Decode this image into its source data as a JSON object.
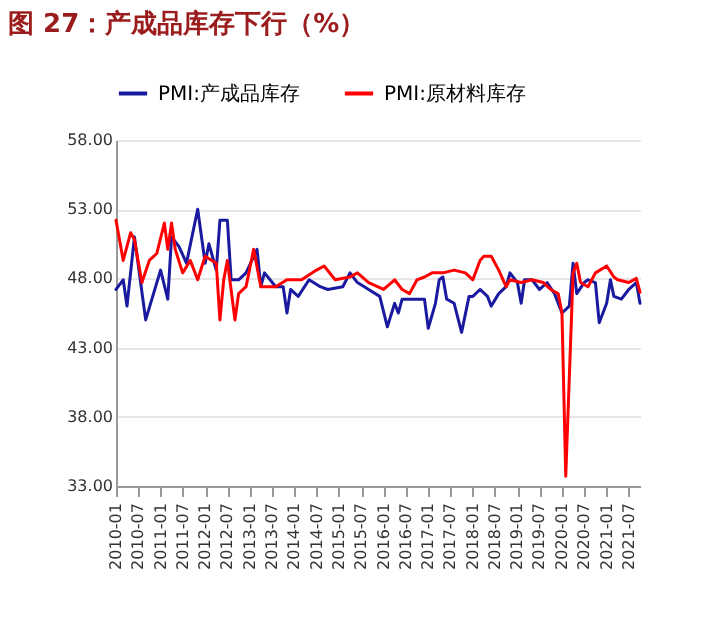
{
  "chart_data": {
    "type": "line",
    "title": "图 27：产成品库存下行（%）",
    "xlim": [
      "2010-01",
      "2021-10"
    ],
    "ylim": [
      33,
      58
    ],
    "yticks": [
      {
        "value": 33,
        "label": "33.00"
      },
      {
        "value": 38,
        "label": "38.00"
      },
      {
        "value": 43,
        "label": "43.00"
      },
      {
        "value": 48,
        "label": "48.00"
      },
      {
        "value": 53,
        "label": "53.00"
      },
      {
        "value": 58,
        "label": "58.00"
      }
    ],
    "xticks": [
      "2010-01",
      "2010-07",
      "2011-01",
      "2011-07",
      "2012-01",
      "2012-07",
      "2013-01",
      "2013-07",
      "2014-01",
      "2014-07",
      "2015-01",
      "2015-07",
      "2016-01",
      "2016-07",
      "2017-01",
      "2017-07",
      "2018-01",
      "2018-07",
      "2019-01",
      "2019-07",
      "2020-01",
      "2020-07",
      "2021-01",
      "2021-07"
    ],
    "grid": "y",
    "legend": "top",
    "series": [
      {
        "name": "PMI:产成品库存",
        "color": "#1a1aa0",
        "x": [
          "2010-01",
          "2010-03",
          "2010-04",
          "2010-06",
          "2010-09",
          "2011-01",
          "2011-03",
          "2011-04",
          "2011-06",
          "2011-08",
          "2011-11",
          "2012-01",
          "2012-02",
          "2012-04",
          "2012-05",
          "2012-07",
          "2012-08",
          "2012-10",
          "2012-12",
          "2013-03",
          "2013-04",
          "2013-05",
          "2013-08",
          "2013-10",
          "2013-11",
          "2013-12",
          "2014-02",
          "2014-05",
          "2014-08",
          "2014-10",
          "2015-02",
          "2015-04",
          "2015-06",
          "2015-09",
          "2015-12",
          "2016-02",
          "2016-04",
          "2016-05",
          "2016-06",
          "2016-10",
          "2016-12",
          "2017-01",
          "2017-03",
          "2017-04",
          "2017-05",
          "2017-06",
          "2017-08",
          "2017-10",
          "2017-12",
          "2018-01",
          "2018-03",
          "2018-05",
          "2018-06",
          "2018-08",
          "2018-10",
          "2018-11",
          "2019-01",
          "2019-02",
          "2019-03",
          "2019-05",
          "2019-07",
          "2019-09",
          "2019-11",
          "2020-01",
          "2020-03",
          "2020-04",
          "2020-05",
          "2020-07",
          "2020-08",
          "2020-10",
          "2020-11",
          "2021-01",
          "2021-02",
          "2021-03",
          "2021-05",
          "2021-07",
          "2021-09",
          "2021-10"
        ],
        "values": [
          47.2,
          47.9,
          46.0,
          51.0,
          45.0,
          48.6,
          46.5,
          51.0,
          50.3,
          49.1,
          53.0,
          49.1,
          50.5,
          48.6,
          52.2,
          52.2,
          47.9,
          47.9,
          48.4,
          50.1,
          47.4,
          48.4,
          47.4,
          47.4,
          45.5,
          47.2,
          46.7,
          47.9,
          47.4,
          47.2,
          47.4,
          48.4,
          47.7,
          47.2,
          46.7,
          44.5,
          46.2,
          45.5,
          46.5,
          46.5,
          46.5,
          44.4,
          46.2,
          47.9,
          48.1,
          46.5,
          46.2,
          44.1,
          46.7,
          46.7,
          47.2,
          46.7,
          46.0,
          46.9,
          47.4,
          48.4,
          47.7,
          46.2,
          47.9,
          47.9,
          47.2,
          47.7,
          46.9,
          45.5,
          46.0,
          49.1,
          46.9,
          47.7,
          47.9,
          47.7,
          44.8,
          46.2,
          47.9,
          46.7,
          46.5,
          47.2,
          47.7,
          46.2
        ]
      },
      {
        "name": "PMI:原材料库存",
        "color": "#ff0000",
        "x": [
          "2010-01",
          "2010-03",
          "2010-05",
          "2010-06",
          "2010-08",
          "2010-10",
          "2010-12",
          "2011-02",
          "2011-03",
          "2011-04",
          "2011-05",
          "2011-07",
          "2011-09",
          "2011-11",
          "2012-01",
          "2012-04",
          "2012-05",
          "2012-06",
          "2012-07",
          "2012-09",
          "2012-10",
          "2012-12",
          "2013-02",
          "2013-04",
          "2013-08",
          "2013-11",
          "2014-03",
          "2014-07",
          "2014-09",
          "2014-12",
          "2015-04",
          "2015-06",
          "2015-09",
          "2016-01",
          "2016-04",
          "2016-06",
          "2016-08",
          "2016-10",
          "2016-12",
          "2017-02",
          "2017-05",
          "2017-08",
          "2017-11",
          "2018-01",
          "2018-03",
          "2018-04",
          "2018-06",
          "2018-08",
          "2018-10",
          "2018-11",
          "2019-02",
          "2019-05",
          "2019-08",
          "2019-10",
          "2019-12",
          "2020-01",
          "2020-02",
          "2020-04",
          "2020-05",
          "2020-06",
          "2020-08",
          "2020-10",
          "2021-01",
          "2021-03",
          "2021-04",
          "2021-07",
          "2021-09",
          "2021-10"
        ],
        "values": [
          52.2,
          49.3,
          51.3,
          50.8,
          47.7,
          49.3,
          49.8,
          52.0,
          50.1,
          52.0,
          50.1,
          48.4,
          49.3,
          47.9,
          49.6,
          49.1,
          45.0,
          47.9,
          49.3,
          45.0,
          46.9,
          47.4,
          50.1,
          47.4,
          47.4,
          47.9,
          47.9,
          48.6,
          48.9,
          47.9,
          48.1,
          48.4,
          47.7,
          47.2,
          47.9,
          47.2,
          46.9,
          47.9,
          48.1,
          48.4,
          48.4,
          48.6,
          48.4,
          47.9,
          49.3,
          49.6,
          49.6,
          48.6,
          47.4,
          47.9,
          47.7,
          47.9,
          47.7,
          47.2,
          46.9,
          45.5,
          33.7,
          48.4,
          49.1,
          47.7,
          47.4,
          48.4,
          48.9,
          48.1,
          47.9,
          47.7,
          48.0,
          47.0
        ]
      }
    ]
  }
}
